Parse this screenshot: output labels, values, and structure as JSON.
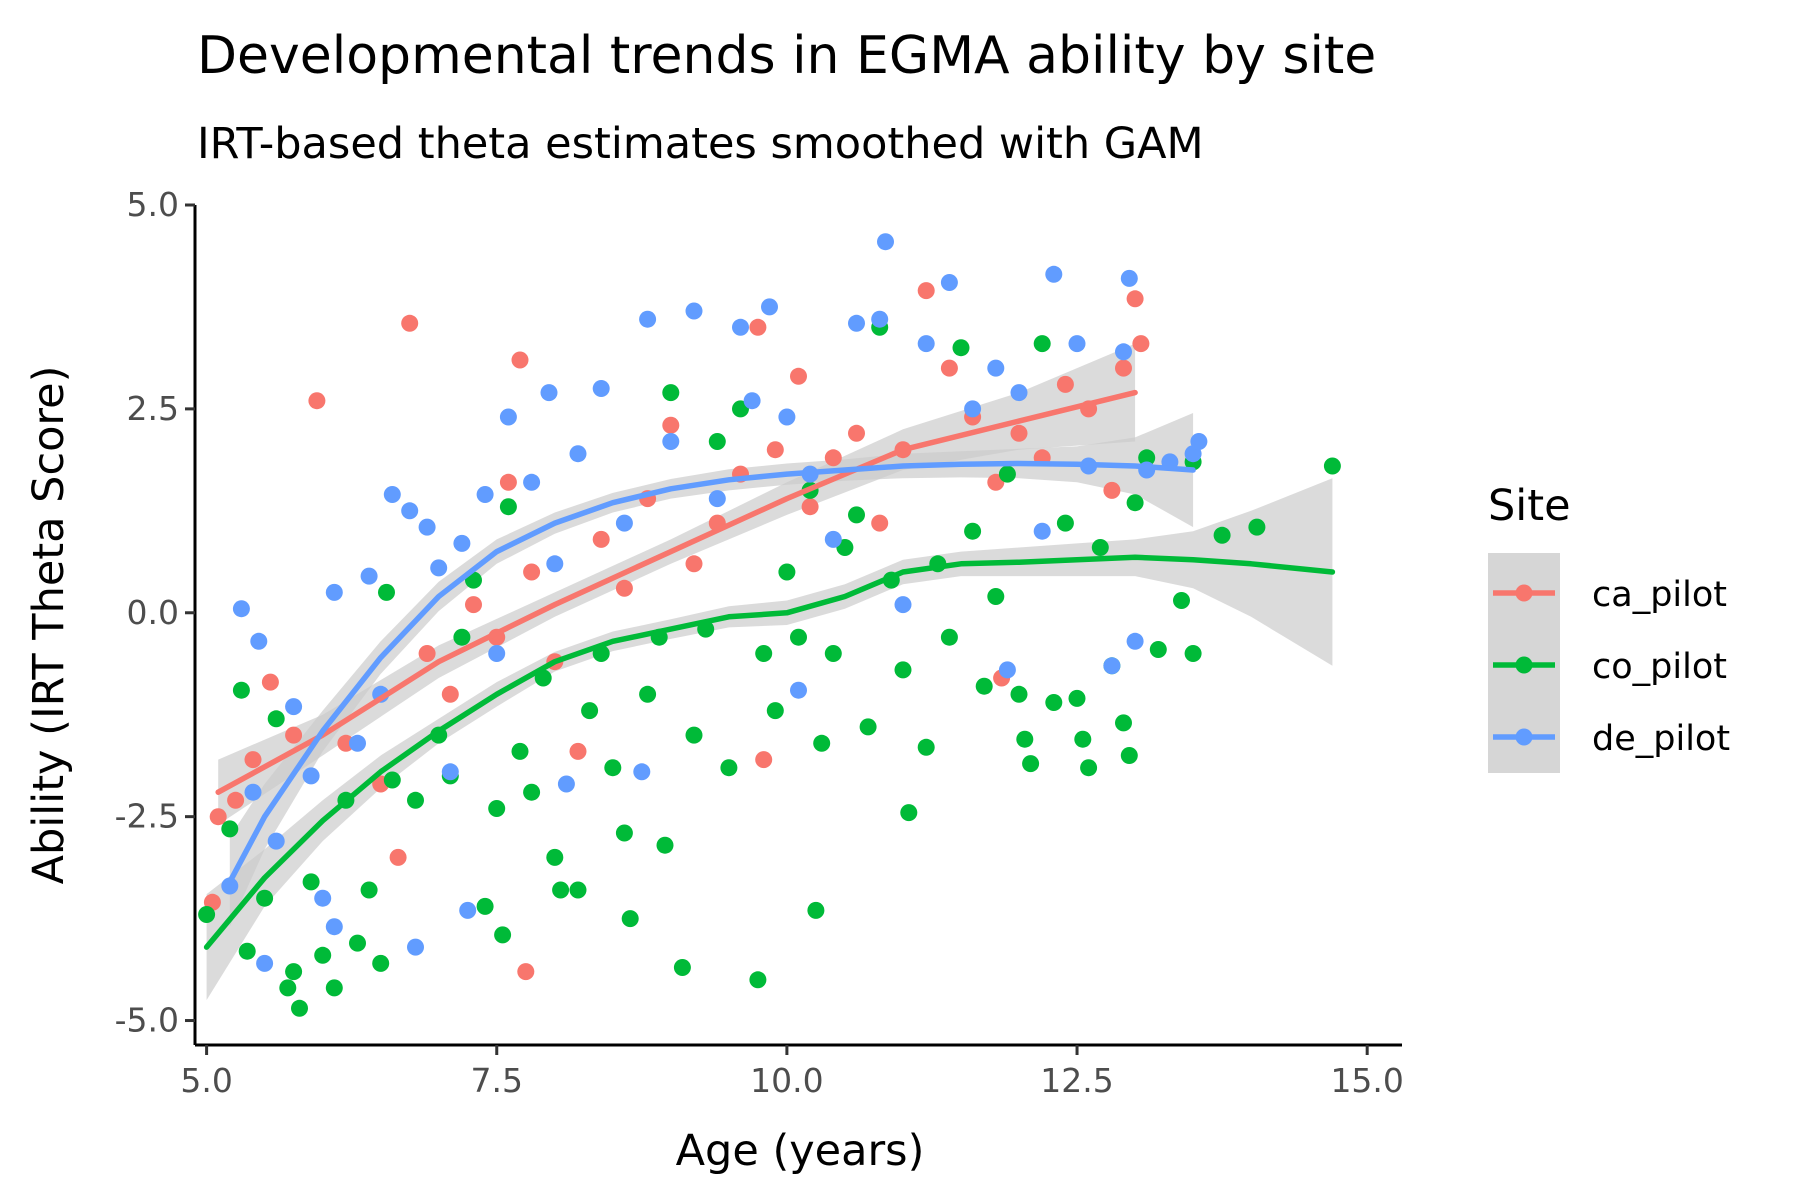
{
  "chart_data": {
    "type": "scatter",
    "title": "Developmental trends in EGMA ability by site",
    "subtitle": "IRT-based theta estimates smoothed with GAM",
    "xlabel": "Age (years)",
    "ylabel": "Ability (IRT Theta Score)",
    "xlim": [
      4.9,
      15.3
    ],
    "ylim": [
      -5.3,
      5.0
    ],
    "x_ticks": [
      5.0,
      7.5,
      10.0,
      12.5,
      15.0
    ],
    "x_tick_labels": [
      "5.0",
      "7.5",
      "10.0",
      "12.5",
      "15.0"
    ],
    "y_ticks": [
      -5.0,
      -2.5,
      0.0,
      2.5,
      5.0
    ],
    "y_tick_labels": [
      "-5.0",
      "-2.5",
      "0.0",
      "2.5",
      "5.0"
    ],
    "grid": false,
    "legend": {
      "title": "Site",
      "position": "right",
      "entries": [
        "ca_pilot",
        "co_pilot",
        "de_pilot"
      ]
    },
    "ribbon_color": "#cccccc",
    "series": [
      {
        "name": "ca_pilot",
        "color": "#F8766D",
        "smooth": {
          "x": [
            5.1,
            6.0,
            7.0,
            8.0,
            9.0,
            10.0,
            11.0,
            12.0,
            13.0
          ],
          "y": [
            -2.2,
            -1.5,
            -0.6,
            0.1,
            0.75,
            1.4,
            2.0,
            2.35,
            2.7
          ],
          "lower": [
            -2.6,
            -1.75,
            -0.8,
            -0.05,
            0.6,
            1.2,
            1.75,
            2.0,
            2.1
          ],
          "upper": [
            -1.8,
            -1.25,
            -0.4,
            0.25,
            0.9,
            1.6,
            2.25,
            2.7,
            3.3
          ]
        },
        "points": [
          [
            5.05,
            -3.55
          ],
          [
            5.1,
            -2.5
          ],
          [
            5.25,
            -2.3
          ],
          [
            5.4,
            -1.8
          ],
          [
            5.55,
            -0.85
          ],
          [
            5.75,
            -1.5
          ],
          [
            5.95,
            2.6
          ],
          [
            6.2,
            -1.6
          ],
          [
            6.5,
            -2.1
          ],
          [
            6.65,
            -3.0
          ],
          [
            6.75,
            3.55
          ],
          [
            6.9,
            -0.5
          ],
          [
            7.1,
            -1.0
          ],
          [
            7.3,
            0.1
          ],
          [
            7.5,
            -0.3
          ],
          [
            7.6,
            1.6
          ],
          [
            7.7,
            3.1
          ],
          [
            7.75,
            -4.4
          ],
          [
            7.8,
            0.5
          ],
          [
            8.0,
            -0.6
          ],
          [
            8.2,
            -1.7
          ],
          [
            8.4,
            0.9
          ],
          [
            8.6,
            0.3
          ],
          [
            8.8,
            1.4
          ],
          [
            9.0,
            2.3
          ],
          [
            9.2,
            0.6
          ],
          [
            9.4,
            1.1
          ],
          [
            9.6,
            1.7
          ],
          [
            9.75,
            3.5
          ],
          [
            9.8,
            -1.8
          ],
          [
            9.9,
            2.0
          ],
          [
            10.1,
            2.9
          ],
          [
            10.2,
            1.3
          ],
          [
            10.4,
            1.9
          ],
          [
            10.6,
            2.2
          ],
          [
            10.8,
            1.1
          ],
          [
            11.0,
            2.0
          ],
          [
            11.2,
            3.95
          ],
          [
            11.4,
            3.0
          ],
          [
            11.6,
            2.4
          ],
          [
            11.8,
            1.6
          ],
          [
            11.85,
            -0.8
          ],
          [
            12.0,
            2.2
          ],
          [
            12.2,
            1.9
          ],
          [
            12.4,
            2.8
          ],
          [
            12.6,
            2.5
          ],
          [
            12.8,
            1.5
          ],
          [
            12.9,
            3.0
          ],
          [
            13.0,
            3.85
          ],
          [
            13.05,
            3.3
          ]
        ]
      },
      {
        "name": "co_pilot",
        "color": "#00BA38",
        "smooth": {
          "x": [
            5.0,
            5.5,
            6.0,
            6.5,
            7.0,
            7.5,
            8.0,
            8.5,
            9.0,
            9.5,
            10.0,
            10.5,
            11.0,
            11.5,
            12.0,
            12.5,
            13.0,
            13.5,
            14.0,
            14.7
          ],
          "y": [
            -4.1,
            -3.25,
            -2.55,
            -1.95,
            -1.45,
            -1.0,
            -0.6,
            -0.35,
            -0.2,
            -0.05,
            0.0,
            0.2,
            0.5,
            0.6,
            0.62,
            0.65,
            0.68,
            0.65,
            0.6,
            0.5
          ],
          "lower": [
            -4.75,
            -3.6,
            -2.8,
            -2.15,
            -1.6,
            -1.15,
            -0.72,
            -0.47,
            -0.32,
            -0.18,
            -0.15,
            0.05,
            0.35,
            0.45,
            0.45,
            0.45,
            0.45,
            0.3,
            -0.05,
            -0.65
          ],
          "upper": [
            -3.45,
            -2.9,
            -2.3,
            -1.75,
            -1.3,
            -0.85,
            -0.48,
            -0.23,
            -0.08,
            0.08,
            0.15,
            0.35,
            0.65,
            0.75,
            0.8,
            0.85,
            0.9,
            1.0,
            1.25,
            1.65
          ]
        },
        "points": [
          [
            5.0,
            -3.7
          ],
          [
            5.2,
            -2.65
          ],
          [
            5.3,
            -0.95
          ],
          [
            5.35,
            -4.15
          ],
          [
            5.5,
            -3.5
          ],
          [
            5.6,
            -1.3
          ],
          [
            5.7,
            -4.6
          ],
          [
            5.75,
            -4.4
          ],
          [
            5.8,
            -4.85
          ],
          [
            5.9,
            -3.3
          ],
          [
            6.0,
            -4.2
          ],
          [
            6.1,
            -4.6
          ],
          [
            6.2,
            -2.3
          ],
          [
            6.3,
            -4.05
          ],
          [
            6.4,
            -3.4
          ],
          [
            6.5,
            -4.3
          ],
          [
            6.55,
            0.25
          ],
          [
            6.6,
            -2.05
          ],
          [
            6.8,
            -2.3
          ],
          [
            7.0,
            -1.5
          ],
          [
            7.1,
            -2.0
          ],
          [
            7.2,
            -0.3
          ],
          [
            7.3,
            0.4
          ],
          [
            7.4,
            -3.6
          ],
          [
            7.5,
            -2.4
          ],
          [
            7.55,
            -3.95
          ],
          [
            7.6,
            1.3
          ],
          [
            7.7,
            -1.7
          ],
          [
            7.8,
            -2.2
          ],
          [
            7.9,
            -0.8
          ],
          [
            8.0,
            -3.0
          ],
          [
            8.05,
            -3.4
          ],
          [
            8.2,
            -3.4
          ],
          [
            8.3,
            -1.2
          ],
          [
            8.4,
            -0.5
          ],
          [
            8.5,
            -1.9
          ],
          [
            8.6,
            -2.7
          ],
          [
            8.65,
            -3.75
          ],
          [
            8.8,
            -1.0
          ],
          [
            8.9,
            -0.3
          ],
          [
            8.95,
            -2.85
          ],
          [
            9.0,
            2.7
          ],
          [
            9.1,
            -4.35
          ],
          [
            9.2,
            -1.5
          ],
          [
            9.3,
            -0.2
          ],
          [
            9.4,
            2.1
          ],
          [
            9.5,
            -1.9
          ],
          [
            9.6,
            2.5
          ],
          [
            9.75,
            -4.5
          ],
          [
            9.8,
            -0.5
          ],
          [
            9.9,
            -1.2
          ],
          [
            10.0,
            0.5
          ],
          [
            10.1,
            -0.3
          ],
          [
            10.2,
            1.5
          ],
          [
            10.25,
            -3.65
          ],
          [
            10.3,
            -1.6
          ],
          [
            10.4,
            -0.5
          ],
          [
            10.5,
            0.8
          ],
          [
            10.6,
            1.2
          ],
          [
            10.7,
            -1.4
          ],
          [
            10.8,
            3.5
          ],
          [
            10.9,
            0.4
          ],
          [
            11.0,
            -0.7
          ],
          [
            11.05,
            -2.45
          ],
          [
            11.2,
            -1.65
          ],
          [
            11.3,
            0.6
          ],
          [
            11.4,
            -0.3
          ],
          [
            11.5,
            3.25
          ],
          [
            11.6,
            1.0
          ],
          [
            11.7,
            -0.9
          ],
          [
            11.8,
            0.2
          ],
          [
            11.9,
            1.7
          ],
          [
            12.0,
            -1.0
          ],
          [
            12.05,
            -1.55
          ],
          [
            12.1,
            -1.85
          ],
          [
            12.2,
            3.3
          ],
          [
            12.3,
            -1.1
          ],
          [
            12.4,
            1.1
          ],
          [
            12.5,
            -1.05
          ],
          [
            12.55,
            -1.55
          ],
          [
            12.6,
            -1.9
          ],
          [
            12.7,
            0.8
          ],
          [
            12.8,
            -0.65
          ],
          [
            12.9,
            -1.35
          ],
          [
            12.95,
            -1.75
          ],
          [
            13.0,
            1.35
          ],
          [
            13.1,
            1.9
          ],
          [
            13.2,
            -0.45
          ],
          [
            13.4,
            0.15
          ],
          [
            13.5,
            -0.5
          ],
          [
            13.5,
            1.85
          ],
          [
            13.75,
            0.95
          ],
          [
            14.05,
            1.05
          ],
          [
            14.7,
            1.8
          ]
        ]
      },
      {
        "name": "de_pilot",
        "color": "#619CFF",
        "smooth": {
          "x": [
            5.2,
            5.5,
            6.0,
            6.5,
            7.0,
            7.5,
            8.0,
            8.5,
            9.0,
            9.5,
            10.0,
            10.5,
            11.0,
            11.5,
            12.0,
            12.5,
            13.0,
            13.5
          ],
          "y": [
            -3.3,
            -2.5,
            -1.45,
            -0.55,
            0.2,
            0.75,
            1.1,
            1.35,
            1.52,
            1.63,
            1.7,
            1.75,
            1.8,
            1.82,
            1.83,
            1.82,
            1.8,
            1.75
          ],
          "lower": [
            -3.85,
            -2.9,
            -1.7,
            -0.75,
            0.02,
            0.6,
            0.97,
            1.23,
            1.4,
            1.5,
            1.57,
            1.62,
            1.65,
            1.66,
            1.65,
            1.6,
            1.45,
            1.05
          ],
          "upper": [
            -2.75,
            -2.1,
            -1.2,
            -0.35,
            0.38,
            0.9,
            1.23,
            1.47,
            1.64,
            1.76,
            1.83,
            1.88,
            1.95,
            1.98,
            2.01,
            2.04,
            2.15,
            2.45
          ]
        },
        "points": [
          [
            5.2,
            -3.35
          ],
          [
            5.3,
            0.05
          ],
          [
            5.4,
            -2.2
          ],
          [
            5.45,
            -0.35
          ],
          [
            5.5,
            -4.3
          ],
          [
            5.6,
            -2.8
          ],
          [
            5.75,
            -1.15
          ],
          [
            5.9,
            -2.0
          ],
          [
            6.0,
            -3.5
          ],
          [
            6.1,
            -3.85
          ],
          [
            6.1,
            0.25
          ],
          [
            6.3,
            -1.6
          ],
          [
            6.4,
            0.45
          ],
          [
            6.5,
            -1.0
          ],
          [
            6.6,
            1.45
          ],
          [
            6.75,
            1.25
          ],
          [
            6.8,
            -4.1
          ],
          [
            6.9,
            1.05
          ],
          [
            7.0,
            0.55
          ],
          [
            7.1,
            -1.95
          ],
          [
            7.2,
            0.85
          ],
          [
            7.25,
            -3.65
          ],
          [
            7.4,
            1.45
          ],
          [
            7.5,
            -0.5
          ],
          [
            7.6,
            2.4
          ],
          [
            7.8,
            1.6
          ],
          [
            7.95,
            2.7
          ],
          [
            8.0,
            0.6
          ],
          [
            8.1,
            -2.1
          ],
          [
            8.2,
            1.95
          ],
          [
            8.4,
            2.75
          ],
          [
            8.6,
            1.1
          ],
          [
            8.75,
            -1.95
          ],
          [
            8.8,
            3.6
          ],
          [
            9.0,
            2.1
          ],
          [
            9.2,
            3.7
          ],
          [
            9.4,
            1.4
          ],
          [
            9.6,
            3.5
          ],
          [
            9.7,
            2.6
          ],
          [
            9.85,
            3.75
          ],
          [
            10.0,
            2.4
          ],
          [
            10.1,
            -0.95
          ],
          [
            10.2,
            1.7
          ],
          [
            10.4,
            0.9
          ],
          [
            10.6,
            3.55
          ],
          [
            10.8,
            3.6
          ],
          [
            10.85,
            4.55
          ],
          [
            11.0,
            0.1
          ],
          [
            11.2,
            3.3
          ],
          [
            11.4,
            4.05
          ],
          [
            11.6,
            2.5
          ],
          [
            11.8,
            3.0
          ],
          [
            11.9,
            -0.7
          ],
          [
            12.0,
            2.7
          ],
          [
            12.2,
            1.0
          ],
          [
            12.3,
            4.15
          ],
          [
            12.5,
            3.3
          ],
          [
            12.6,
            1.8
          ],
          [
            12.8,
            -0.65
          ],
          [
            12.9,
            3.2
          ],
          [
            12.95,
            4.1
          ],
          [
            13.0,
            -0.35
          ],
          [
            13.1,
            1.75
          ],
          [
            13.3,
            1.85
          ],
          [
            13.5,
            1.95
          ],
          [
            13.55,
            2.1
          ]
        ]
      }
    ]
  }
}
